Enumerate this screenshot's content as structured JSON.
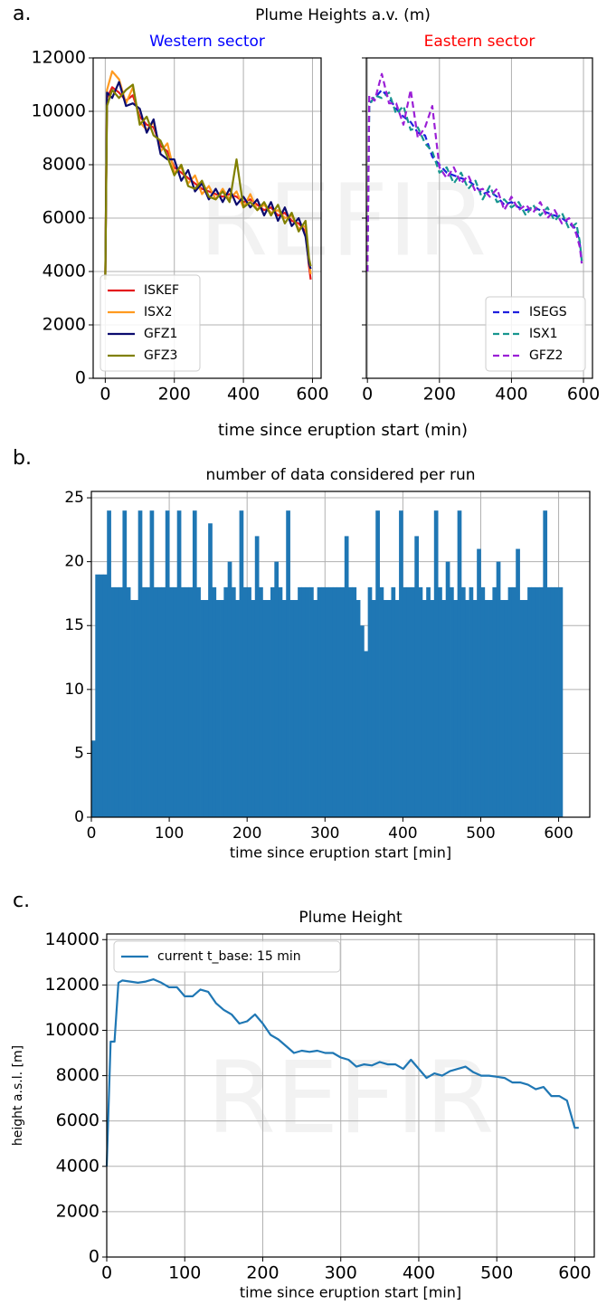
{
  "chart_data": [
    {
      "type": "line",
      "panel_label": "a.",
      "suptitle": "Plume Heights a.v. (m)",
      "title": "Western sector",
      "title_color": "#0000ff",
      "xlabel": "time since eruption start (min)",
      "watermark": "REFIR",
      "x": [
        0,
        5,
        20,
        40,
        60,
        80,
        100,
        120,
        140,
        160,
        180,
        200,
        220,
        240,
        260,
        280,
        300,
        320,
        340,
        360,
        380,
        400,
        420,
        440,
        460,
        480,
        500,
        520,
        540,
        560,
        580,
        590,
        595
      ],
      "series": [
        {
          "name": "ISKEF",
          "color": "#e41a1c",
          "values": [
            3700,
            10500,
            10900,
            10700,
            10400,
            10600,
            9800,
            9500,
            9400,
            8700,
            8500,
            7900,
            7700,
            7500,
            7300,
            7100,
            7000,
            6900,
            6800,
            6900,
            6800,
            6600,
            6700,
            6500,
            6300,
            6400,
            6100,
            6200,
            5900,
            5800,
            5500,
            4200,
            3700
          ]
        },
        {
          "name": "ISX2",
          "color": "#ff9a1f",
          "values": [
            3700,
            10800,
            11500,
            11200,
            10300,
            10900,
            9600,
            9300,
            9600,
            8500,
            8800,
            7700,
            7900,
            7300,
            7600,
            6900,
            7200,
            6700,
            7100,
            6700,
            7000,
            6400,
            6900,
            6300,
            6500,
            6200,
            6300,
            6000,
            6100,
            5600,
            5700,
            4400,
            3900
          ]
        },
        {
          "name": "GFZ1",
          "color": "#0b0b6e",
          "values": [
            3700,
            10700,
            10500,
            11100,
            10200,
            10300,
            10100,
            9200,
            9700,
            8400,
            8200,
            8200,
            7400,
            7800,
            7000,
            7300,
            6700,
            7100,
            6600,
            7100,
            6500,
            6800,
            6400,
            6700,
            6100,
            6600,
            5900,
            6400,
            5700,
            6000,
            5300,
            4300,
            4100
          ]
        },
        {
          "name": "GFZ3",
          "color": "#808000",
          "values": [
            3700,
            10200,
            10800,
            10500,
            10800,
            11000,
            9500,
            9800,
            9100,
            8900,
            8300,
            7600,
            8000,
            7200,
            7100,
            7400,
            6800,
            6700,
            7000,
            6600,
            8200,
            6400,
            6600,
            6300,
            6600,
            6100,
            6500,
            5800,
            6200,
            5500,
            5900,
            4500,
            4200
          ]
        }
      ],
      "linestyle": "solid",
      "xlim": [
        -35,
        625
      ],
      "xticks": [
        0,
        200,
        400,
        600
      ],
      "ylim": [
        0,
        12000
      ],
      "yticks": [
        0,
        2000,
        4000,
        6000,
        8000,
        10000,
        12000
      ],
      "grid": true,
      "legend": "lower left",
      "ytick_labels": true
    },
    {
      "type": "line",
      "title": "Eastern sector",
      "title_color": "#ff0000",
      "x": [
        0,
        5,
        20,
        40,
        60,
        80,
        100,
        120,
        140,
        160,
        180,
        200,
        220,
        240,
        260,
        280,
        300,
        320,
        340,
        360,
        380,
        400,
        420,
        440,
        460,
        480,
        500,
        520,
        540,
        560,
        580,
        590,
        595
      ],
      "series": [
        {
          "name": "ISEGS",
          "color": "#1f1fdd",
          "values": [
            4000,
            10300,
            10500,
            10800,
            10500,
            10100,
            9800,
            9600,
            9200,
            9100,
            8300,
            8000,
            7700,
            7600,
            7500,
            7400,
            7200,
            6900,
            7000,
            6800,
            6500,
            6600,
            6400,
            6300,
            6400,
            6300,
            6200,
            6100,
            6000,
            5800,
            5600,
            5000,
            4400
          ]
        },
        {
          "name": "ISX1",
          "color": "#17968f",
          "values": [
            4000,
            10200,
            10600,
            10500,
            10700,
            9900,
            10200,
            9300,
            9400,
            8800,
            8500,
            7700,
            7900,
            7300,
            7700,
            7100,
            7400,
            6700,
            7200,
            6600,
            6700,
            6400,
            6600,
            6100,
            6500,
            6100,
            6400,
            5900,
            6200,
            5600,
            5800,
            5100,
            4400
          ]
        },
        {
          "name": "GFZ2",
          "color": "#9b1fd6",
          "values": [
            4000,
            10600,
            10400,
            11400,
            10300,
            10300,
            9500,
            10800,
            9000,
            9400,
            10200,
            7900,
            7500,
            7900,
            7300,
            7600,
            7000,
            7100,
            6800,
            7100,
            6300,
            6800,
            6300,
            6500,
            6200,
            6600,
            6000,
            6300,
            5800,
            6000,
            5400,
            4900,
            4300
          ]
        }
      ],
      "linestyle": "dashed",
      "xlim": [
        -3,
        625
      ],
      "xticks": [
        0,
        200,
        400,
        600
      ],
      "ylim": [
        0,
        12000
      ],
      "yticks": [
        0,
        2000,
        4000,
        6000,
        8000,
        10000,
        12000
      ],
      "grid": true,
      "legend": "lower right",
      "ytick_labels": false
    },
    {
      "type": "histogram",
      "panel_label": "b.",
      "title": "number of data considered per run",
      "xlabel": "time since eruption start [min]",
      "color": "#1f77b4",
      "bins": [
        0,
        5,
        10,
        15,
        20,
        25,
        30,
        35,
        40,
        45,
        50,
        55,
        60,
        65,
        70,
        75,
        80,
        85,
        90,
        95,
        100,
        105,
        110,
        115,
        120,
        125,
        130,
        135,
        140,
        145,
        150,
        155,
        160,
        165,
        170,
        175,
        180,
        185,
        190,
        195,
        200,
        205,
        210,
        215,
        220,
        225,
        230,
        235,
        240,
        245,
        250,
        255,
        260,
        265,
        270,
        275,
        280,
        285,
        290,
        295,
        300,
        305,
        310,
        315,
        320,
        325,
        330,
        335,
        340,
        345,
        350,
        355,
        360,
        365,
        370,
        375,
        380,
        385,
        390,
        395,
        400,
        405,
        410,
        415,
        420,
        425,
        430,
        435,
        440,
        445,
        450,
        455,
        460,
        465,
        470,
        475,
        480,
        485,
        490,
        495,
        500,
        505,
        510,
        515,
        520,
        525,
        530,
        535,
        540,
        545,
        550,
        555,
        560,
        565,
        570,
        575,
        580,
        585,
        590,
        595,
        600,
        605
      ],
      "values": [
        6,
        19,
        19,
        19,
        24,
        18,
        18,
        18,
        24,
        18,
        17,
        17,
        24,
        18,
        18,
        24,
        18,
        18,
        18,
        24,
        18,
        18,
        24,
        18,
        18,
        18,
        24,
        18,
        17,
        17,
        23,
        18,
        17,
        17,
        18,
        20,
        18,
        17,
        24,
        18,
        18,
        17,
        22,
        18,
        17,
        17,
        18,
        20,
        18,
        17,
        24,
        17,
        17,
        18,
        18,
        18,
        18,
        17,
        18,
        18,
        18,
        18,
        18,
        18,
        18,
        22,
        18,
        18,
        17,
        15,
        13,
        18,
        17,
        24,
        18,
        17,
        17,
        18,
        17,
        24,
        18,
        18,
        18,
        22,
        18,
        17,
        18,
        17,
        24,
        18,
        17,
        20,
        18,
        17,
        24,
        18,
        17,
        18,
        17,
        21,
        18,
        17,
        17,
        18,
        20,
        17,
        17,
        18,
        18,
        21,
        17,
        17,
        18,
        18,
        18,
        18,
        24,
        18,
        18,
        18,
        18
      ],
      "xlim": [
        0,
        640
      ],
      "xticks": [
        0,
        100,
        200,
        300,
        400,
        500,
        600
      ],
      "ylim": [
        0,
        25.5
      ],
      "yticks": [
        0,
        5,
        10,
        15,
        20,
        25
      ],
      "grid": true,
      "ytick_labels": true
    },
    {
      "type": "line",
      "panel_label": "c.",
      "title": "Plume Height",
      "xlabel": "time since eruption start [min]",
      "ylabel": "height a.s.l. [m]",
      "watermark": "REFIR",
      "x": [
        0,
        5,
        10,
        15,
        20,
        30,
        40,
        50,
        60,
        70,
        80,
        90,
        100,
        110,
        120,
        130,
        140,
        150,
        160,
        170,
        180,
        190,
        200,
        210,
        220,
        230,
        240,
        250,
        260,
        270,
        280,
        290,
        300,
        310,
        320,
        330,
        340,
        350,
        360,
        370,
        380,
        390,
        400,
        410,
        420,
        430,
        440,
        450,
        460,
        470,
        480,
        490,
        500,
        510,
        520,
        530,
        540,
        550,
        560,
        570,
        580,
        590,
        600,
        605
      ],
      "series": [
        {
          "name": "current t_base: 15 min",
          "color": "#1f77b4",
          "values": [
            4000,
            9500,
            9500,
            12100,
            12200,
            12150,
            12100,
            12150,
            12250,
            12100,
            11900,
            11900,
            11500,
            11500,
            11800,
            11700,
            11200,
            10900,
            10700,
            10300,
            10400,
            10700,
            10300,
            9800,
            9600,
            9300,
            9000,
            9100,
            9050,
            9100,
            9000,
            9000,
            8800,
            8700,
            8400,
            8500,
            8450,
            8600,
            8500,
            8500,
            8300,
            8700,
            8300,
            7900,
            8100,
            8000,
            8200,
            8300,
            8400,
            8150,
            8000,
            8000,
            7950,
            7900,
            7700,
            7700,
            7600,
            7400,
            7500,
            7100,
            7100,
            6900,
            5700,
            5700
          ]
        }
      ],
      "linestyle": "solid",
      "xlim": [
        0,
        625
      ],
      "xticks": [
        0,
        100,
        200,
        300,
        400,
        500,
        600
      ],
      "ylim": [
        0,
        14250
      ],
      "yticks": [
        0,
        2000,
        4000,
        6000,
        8000,
        10000,
        12000,
        14000
      ],
      "grid": true,
      "legend": "upper left",
      "ytick_labels": true
    }
  ]
}
